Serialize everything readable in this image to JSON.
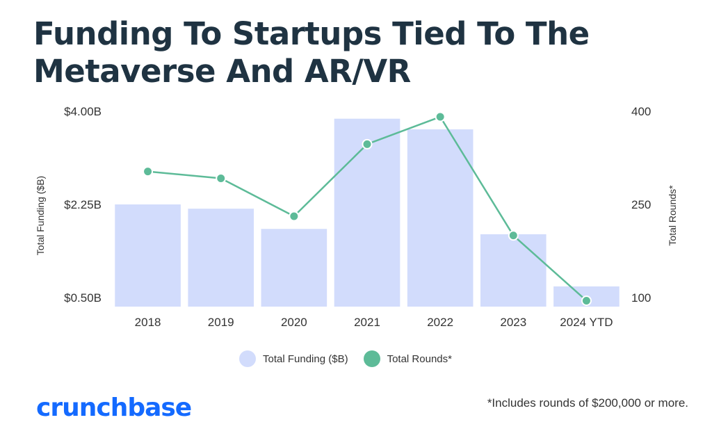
{
  "page": {
    "title": "Funding To Startups Tied To The Metaverse And AR/VR",
    "logo": "crunchbase",
    "footnote": "*Includes rounds of $200,000 or more."
  },
  "colors": {
    "bar": "#d2dcfc",
    "line": "#5dbb98",
    "title": "#1f3342",
    "logo": "#146aff"
  },
  "chart_data": {
    "type": "bar",
    "title": "Funding To Startups Tied To The Metaverse And AR/VR",
    "categories": [
      "2018",
      "2019",
      "2020",
      "2021",
      "2022",
      "2023",
      "2024 YTD"
    ],
    "series": [
      {
        "name": "Total Funding ($B)",
        "type": "bar",
        "axis": "left",
        "values": [
          2.25,
          2.17,
          1.79,
          3.86,
          3.66,
          1.69,
          0.71
        ]
      },
      {
        "name": "Total Rounds*",
        "type": "line",
        "axis": "right",
        "values": [
          303,
          292,
          231,
          347,
          391,
          200,
          95
        ]
      }
    ],
    "y_left": {
      "label": "Total Funding ($B)",
      "range": [
        0.5,
        4.0
      ],
      "ticks": [
        0.5,
        2.25,
        4.0
      ],
      "tick_labels": [
        "$0.50B",
        "$2.25B",
        "$4.00B"
      ]
    },
    "y_right": {
      "label": "Total Rounds*",
      "range": [
        100,
        400
      ],
      "ticks": [
        100,
        250,
        400
      ],
      "tick_labels": [
        "100",
        "250",
        "400"
      ]
    },
    "grid": false,
    "legend": "bottom"
  }
}
